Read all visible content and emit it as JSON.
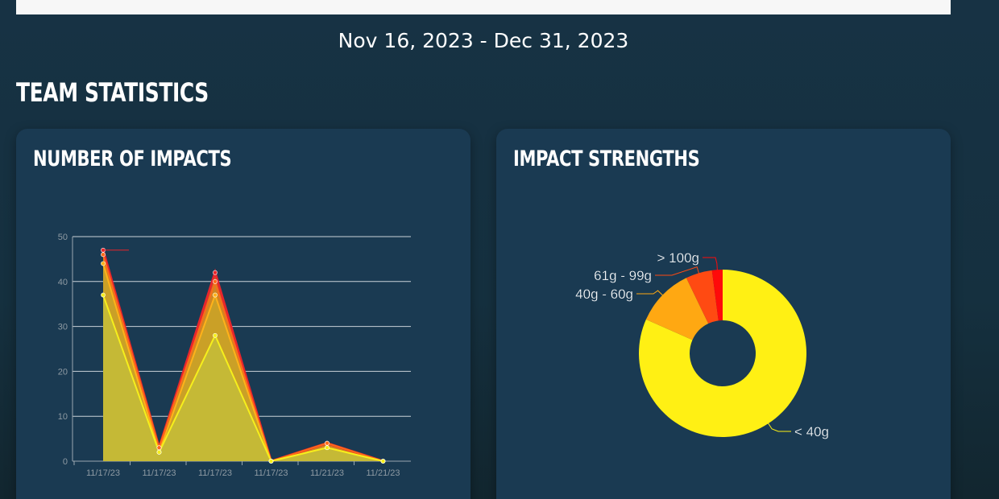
{
  "header": {
    "date_range": "Nov 16, 2023 - Dec 31, 2023",
    "section_title": "TEAM STATISTICS"
  },
  "cards": {
    "impacts_title": "NUMBER OF IMPACTS",
    "strengths_title": "IMPACT STRENGTHS"
  },
  "colors": {
    "background": "#173244",
    "card": "#1a3a52",
    "yellow": "#fff014",
    "orange": "#ffa812",
    "orange_red": "#ff4a12",
    "red": "#ff0a0a"
  },
  "chart_data": [
    {
      "type": "area",
      "categories": [
        "11/17/23",
        "11/17/23",
        "11/17/23",
        "11/17/23",
        "11/21/23",
        "11/21/23"
      ],
      "x_positions": [
        0,
        1,
        2,
        3,
        4,
        5
      ],
      "ylim": [
        0,
        50
      ],
      "yticks": [
        0,
        10,
        20,
        30,
        40,
        50
      ],
      "grid": true,
      "series": [
        {
          "values": [
            47,
            3,
            42,
            0,
            4,
            0
          ],
          "color": "#e8252b"
        },
        {
          "values": [
            46,
            3,
            40,
            0,
            4,
            0
          ],
          "color": "#ff6a1a"
        },
        {
          "values": [
            44,
            2,
            37,
            0,
            3,
            0
          ],
          "color": "#ffb21a"
        },
        {
          "values": [
            37,
            2,
            28,
            0,
            3,
            0
          ],
          "color": "#f6ef1c"
        }
      ]
    },
    {
      "type": "pie",
      "donut": true,
      "slices": [
        {
          "label": "< 40g",
          "value": 80,
          "color": "#fff014"
        },
        {
          "label": "40g - 60g",
          "value": 11,
          "color": "#ffa812"
        },
        {
          "label": "61g - 99g",
          "value": 5,
          "color": "#ff4a12"
        },
        {
          "label": "> 100g",
          "value": 2,
          "color": "#ff0a0a"
        }
      ]
    }
  ]
}
